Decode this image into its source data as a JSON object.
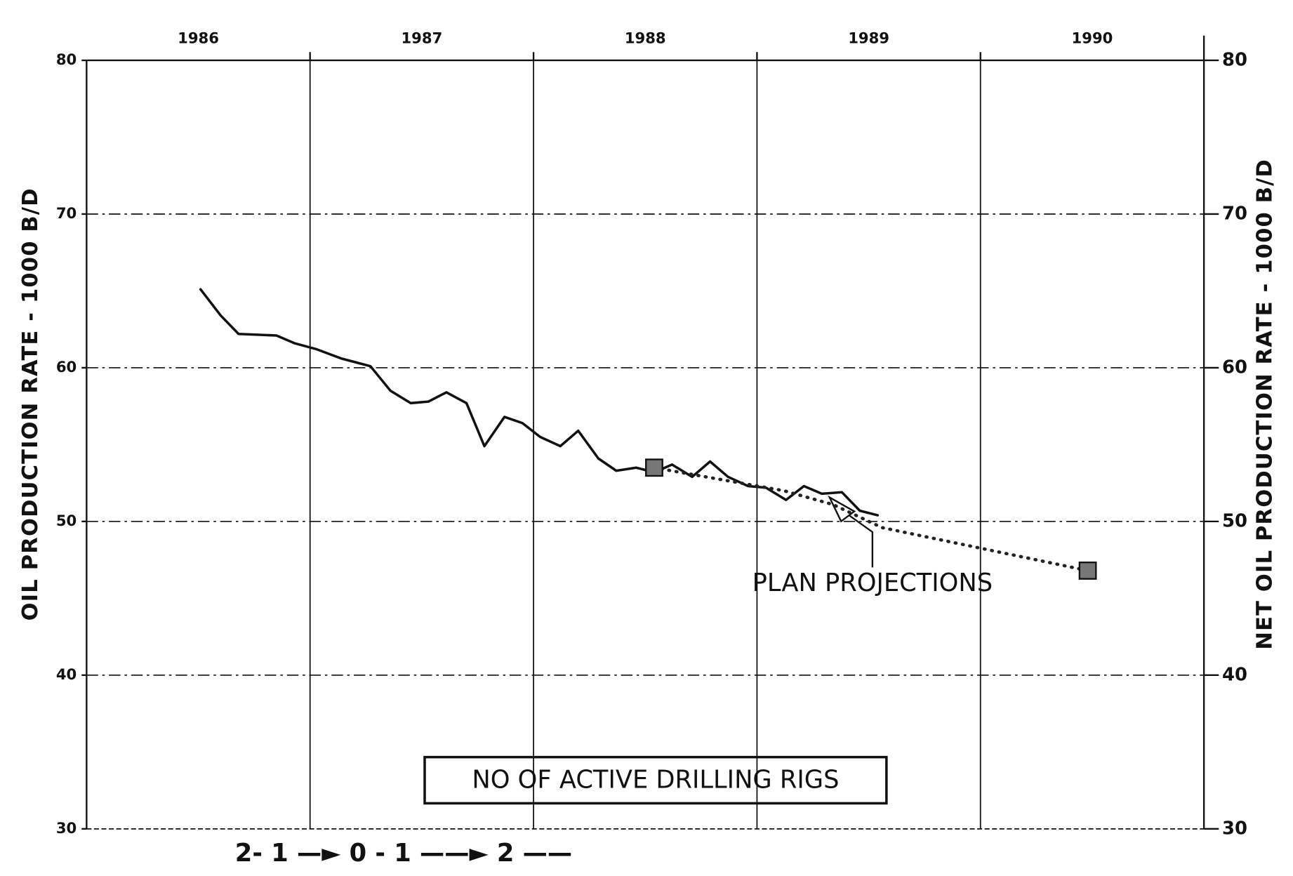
{
  "chart_data": {
    "type": "line",
    "categories": [
      "1986",
      "1987",
      "1988",
      "1989",
      "1990"
    ],
    "xlim": [
      1986,
      1991
    ],
    "xticks": [
      1987,
      1988,
      1989,
      1990
    ],
    "ylim": [
      30,
      80
    ],
    "yticks": [
      30,
      40,
      50,
      60,
      70,
      80
    ],
    "y2lim": [
      30,
      80
    ],
    "y2ticks": [
      30,
      40,
      50,
      60,
      70,
      80
    ],
    "ylabel": "OIL PRODUCTION RATE - 1000 B/D",
    "y2label": "NET OIL PRODUCTION RATE - 1000 B/D",
    "grid": true,
    "series": [
      {
        "color": "#111111",
        "style": "solid",
        "x": [
          1986.51,
          1986.6,
          1986.68,
          1986.85,
          1986.93,
          1987.03,
          1987.14,
          1987.27,
          1987.36,
          1987.45,
          1987.53,
          1987.61,
          1987.7,
          1987.78,
          1987.87,
          1987.95,
          1988.03,
          1988.12,
          1988.2,
          1988.29,
          1988.37,
          1988.46,
          1988.54,
          1988.62,
          1988.71,
          1988.79,
          1988.87,
          1988.96,
          1989.04,
          1989.13,
          1989.21,
          1989.29,
          1989.38,
          1989.46,
          1989.54
        ],
        "values": [
          65.1,
          63.4,
          62.2,
          62.1,
          61.6,
          61.2,
          60.6,
          60.1,
          58.5,
          57.7,
          57.8,
          58.4,
          57.7,
          54.9,
          56.8,
          56.4,
          55.5,
          54.9,
          55.9,
          54.1,
          53.3,
          53.5,
          53.2,
          53.7,
          52.9,
          53.9,
          52.9,
          52.3,
          52.2,
          51.4,
          52.3,
          51.8,
          51.9,
          50.7,
          50.4
        ]
      },
      {
        "color": "#222222",
        "style": "dotted",
        "marker": "square",
        "x": [
          1988.54,
          1989.12,
          1989.34,
          1989.56,
          1990.48
        ],
        "values": [
          53.5,
          52.0,
          51.1,
          49.6,
          46.8
        ]
      }
    ],
    "annotations": [
      "PLAN PROJECTIONS",
      "NO OF ACTIVE DRILLING RIGS",
      "2-   1 —►  0  -  1 ——► 2 ——"
    ]
  }
}
